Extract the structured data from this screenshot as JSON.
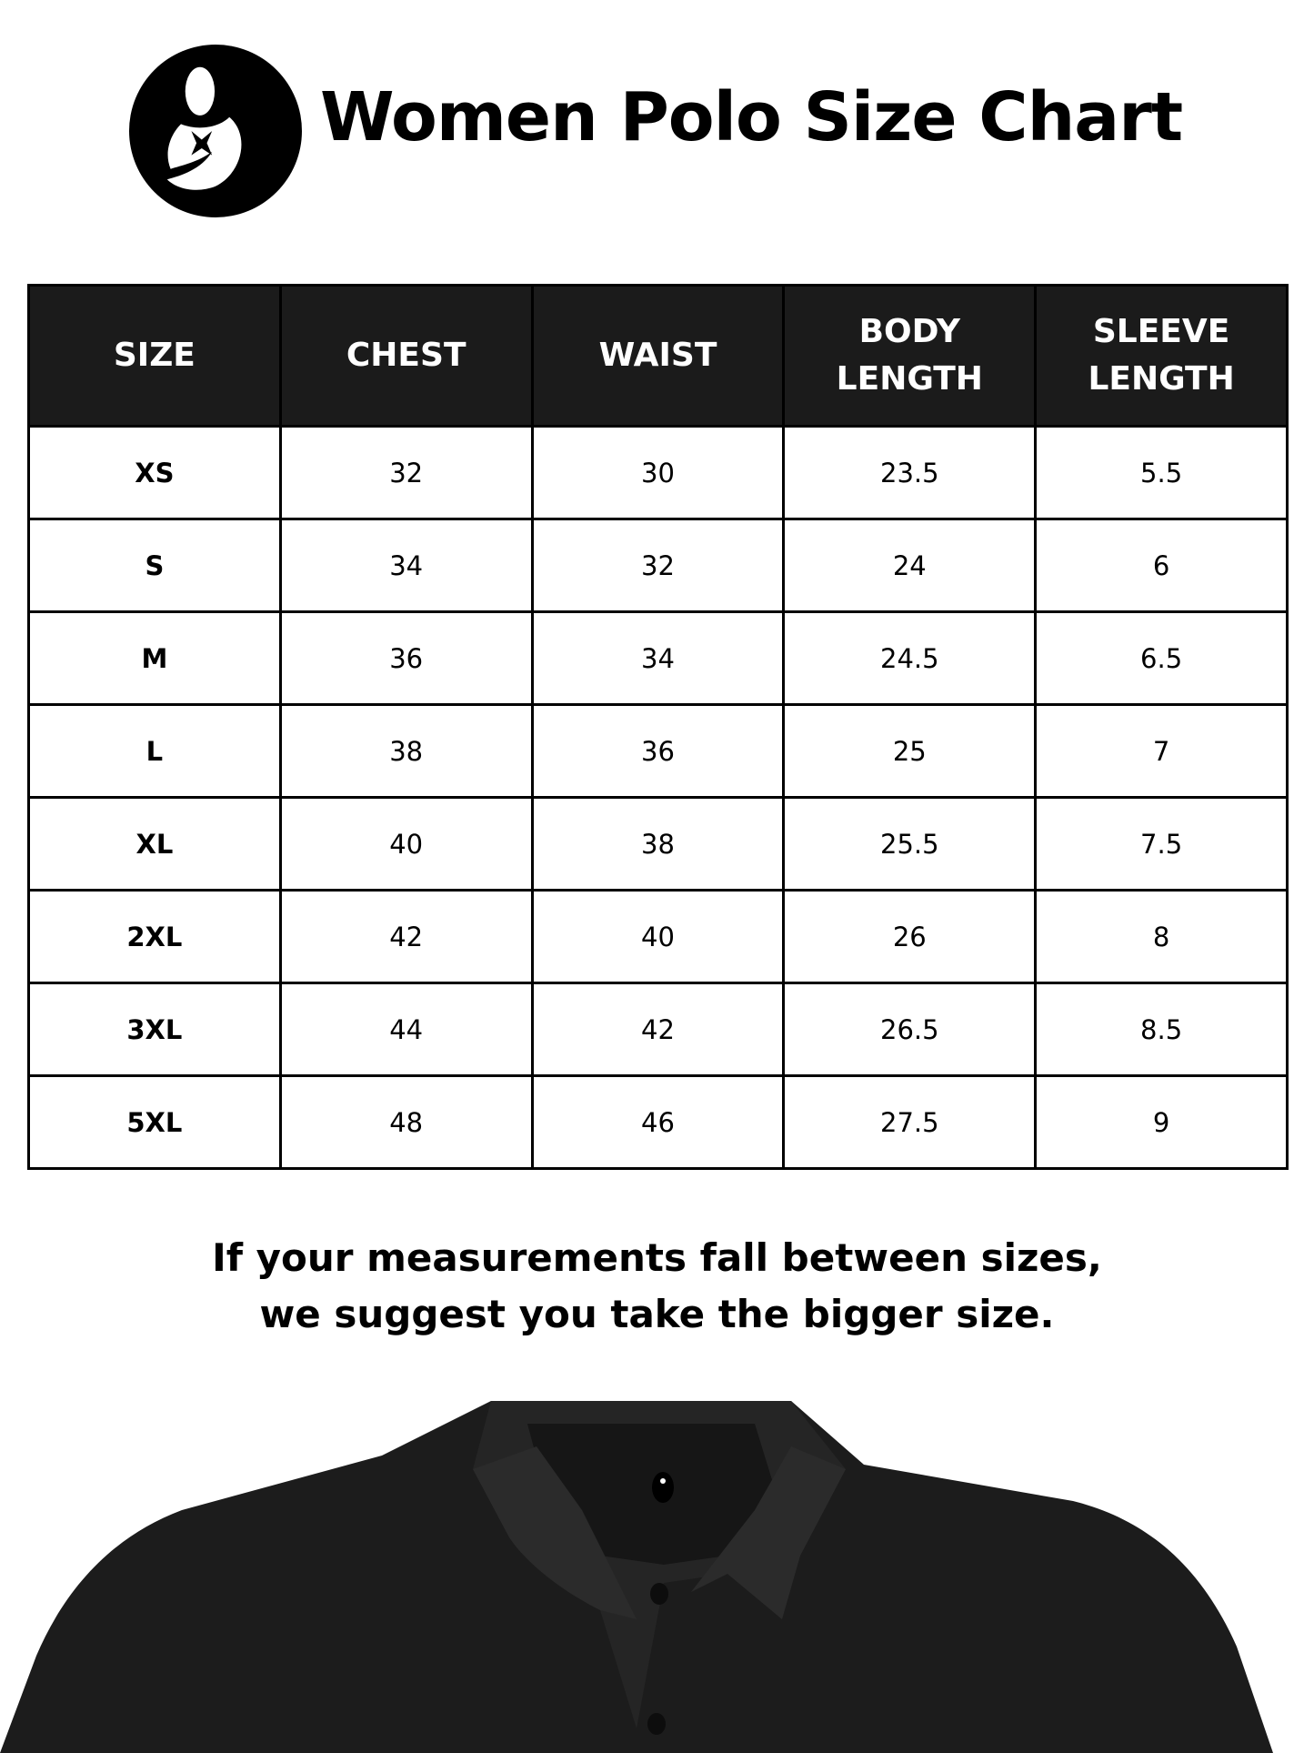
{
  "header": {
    "title": "Women Polo Size Chart",
    "logo": "mother-and-child-logo"
  },
  "table": {
    "columns": [
      "SIZE",
      "CHEST",
      "WAIST",
      "BODY\nLENGTH",
      "SLEEVE\nLENGTH"
    ],
    "rows": [
      [
        "XS",
        "32",
        "30",
        "23.5",
        "5.5"
      ],
      [
        "S",
        "34",
        "32",
        "24",
        "6"
      ],
      [
        "M",
        "36",
        "34",
        "24.5",
        "6.5"
      ],
      [
        "L",
        "38",
        "36",
        "25",
        "7"
      ],
      [
        "XL",
        "40",
        "38",
        "25.5",
        "7.5"
      ],
      [
        "2XL",
        "42",
        "40",
        "26",
        "8"
      ],
      [
        "3XL",
        "44",
        "42",
        "26.5",
        "8.5"
      ],
      [
        "5XL",
        "48",
        "46",
        "27.5",
        "9"
      ]
    ]
  },
  "note": {
    "line1": "If your measurements fall between sizes,",
    "line2": "we suggest you take the bigger size."
  },
  "image": {
    "subject": "black-polo-shirt",
    "color": "#1a1a1a"
  }
}
